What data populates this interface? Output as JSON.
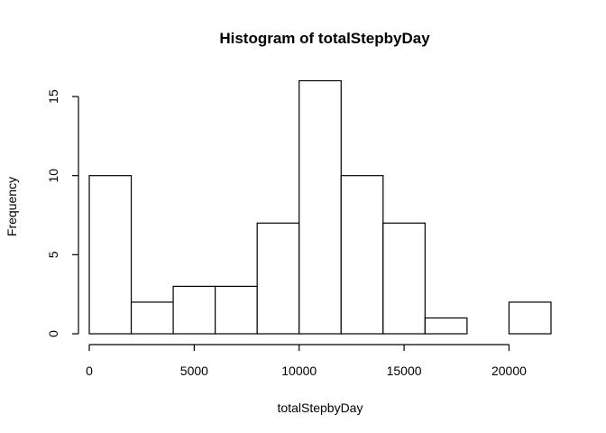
{
  "chart_data": {
    "type": "bar",
    "title": "Histogram of totalStepbyDay",
    "xlabel": "totalStepbyDay",
    "ylabel": "Frequency",
    "bin_edges": [
      0,
      2000,
      4000,
      6000,
      8000,
      10000,
      12000,
      14000,
      16000,
      18000,
      20000,
      22000
    ],
    "values": [
      10,
      2,
      3,
      3,
      7,
      16,
      10,
      7,
      1,
      0,
      2
    ],
    "xlim": [
      0,
      22000
    ],
    "ylim": [
      0,
      16
    ],
    "x_ticks": [
      0,
      5000,
      10000,
      15000,
      20000
    ],
    "x_tick_labels": [
      "0",
      "5000",
      "10000",
      "15000",
      "20000"
    ],
    "y_ticks": [
      0,
      5,
      10,
      15
    ],
    "y_tick_labels": [
      "0",
      "5",
      "10",
      "15"
    ],
    "grid": false,
    "fill_color": "#ffffff",
    "stroke_color": "#000000"
  }
}
